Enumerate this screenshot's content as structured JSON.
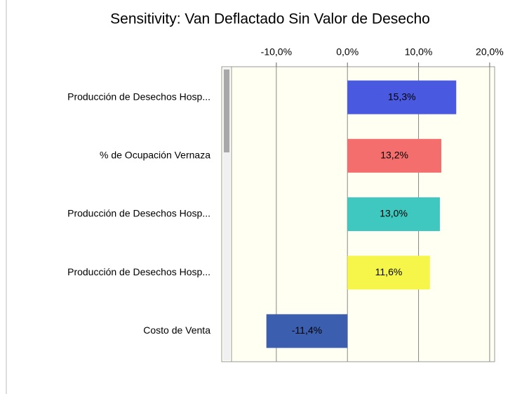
{
  "chart_data": {
    "type": "barh",
    "title": "Sensitivity: Van Deflactado Sin Valor de Desecho",
    "categories": [
      "Producción de Desechos Hosp...",
      "% de Ocupación Vernaza",
      "Producción de Desechos Hosp...",
      "Producción de Desechos Hosp...",
      "Costo de Venta"
    ],
    "values": [
      15.3,
      13.2,
      13.0,
      11.6,
      -11.4
    ],
    "value_labels": [
      "15,3%",
      "13,2%",
      "13,0%",
      "11,6%",
      "-11,4%"
    ],
    "colors": [
      "#4a5ae0",
      "#f46e6e",
      "#3ec8bf",
      "#f6f64a",
      "#3b5fae"
    ],
    "xlim": [
      -16.3,
      20.7
    ],
    "xticks": [
      {
        "value": -10,
        "label": "-10,0%"
      },
      {
        "value": 0,
        "label": "0,0%"
      },
      {
        "value": 10,
        "label": "10,0%"
      },
      {
        "value": 20,
        "label": "20,0%"
      }
    ],
    "grid": true
  }
}
